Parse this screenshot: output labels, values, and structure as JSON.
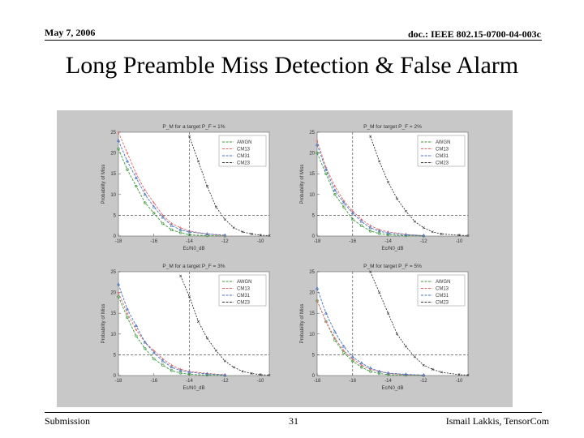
{
  "header": {
    "date": "May 7, 2006",
    "doc": "doc.: IEEE 802.15-0700-04-003c"
  },
  "slide": {
    "title": "Long Preamble Miss Detection & False Alarm"
  },
  "footer": {
    "left": "Submission",
    "page": "31",
    "right": "Ismail Lakkis, TensorCom"
  },
  "chart_data": [
    {
      "type": "line",
      "title": "P_M for a target P_F = 1%",
      "xlabel": "Ec/N0_dB",
      "ylabel": "Probability of Miss",
      "xlim": [
        -18,
        -9.5
      ],
      "ylim": [
        0,
        25
      ],
      "xticks": [
        -18,
        -16,
        -14,
        -12,
        -10
      ],
      "yticks": [
        0,
        5,
        10,
        15,
        20,
        25
      ],
      "reference_lines": {
        "y": 5,
        "x": -14
      },
      "legend_position": "top-right",
      "series": [
        {
          "name": "AWGN",
          "color": "#3a9a3a",
          "x": [
            -18,
            -17.5,
            -17,
            -16.5,
            -16,
            -15.5,
            -15,
            -14.5,
            -14,
            -13,
            -12
          ],
          "y": [
            21,
            16,
            12,
            8,
            5.5,
            3,
            1.5,
            0.8,
            0.3,
            0.1,
            0
          ]
        },
        {
          "name": "CM13",
          "color": "#e06666",
          "x": [
            -18,
            -17.5,
            -17,
            -16.5,
            -16,
            -15.5,
            -15,
            -14.5,
            -14,
            -13,
            -12
          ],
          "y": [
            25,
            20,
            15,
            11,
            8,
            5,
            3,
            2,
            1.2,
            0.5,
            0
          ]
        },
        {
          "name": "CM31",
          "color": "#4472c4",
          "x": [
            -18,
            -17.5,
            -17,
            -16.5,
            -16,
            -15.5,
            -15,
            -14.5,
            -14,
            -13,
            -12
          ],
          "y": [
            23,
            18,
            14,
            10,
            7,
            4.5,
            2.5,
            1.5,
            1,
            0.5,
            0.2
          ]
        },
        {
          "name": "CM23",
          "color": "#333333",
          "x": [
            -14,
            -13.5,
            -13,
            -12.5,
            -12,
            -11.5,
            -11,
            -10.5,
            -10,
            -9.5
          ],
          "y": [
            24,
            18,
            12,
            7,
            4,
            2,
            1,
            0.5,
            0.2,
            0.1
          ]
        }
      ]
    },
    {
      "type": "line",
      "title": "P_M for target P_F = 2%",
      "xlabel": "Ec/N0_dB",
      "ylabel": "Probability of Miss",
      "xlim": [
        -18,
        -9.5
      ],
      "ylim": [
        0,
        25
      ],
      "xticks": [
        -18,
        -16,
        -14,
        -12,
        -10
      ],
      "yticks": [
        0,
        5,
        10,
        15,
        20,
        25
      ],
      "reference_lines": {
        "y": 5,
        "x": -16
      },
      "legend_position": "top-right",
      "series": [
        {
          "name": "AWGN",
          "color": "#3a9a3a",
          "x": [
            -18,
            -17.5,
            -17,
            -16.5,
            -16,
            -15.5,
            -15,
            -14.5,
            -14,
            -13,
            -12
          ],
          "y": [
            20,
            15,
            10,
            7,
            4,
            2.5,
            1.2,
            0.6,
            0.3,
            0.1,
            0
          ]
        },
        {
          "name": "CM13",
          "color": "#e06666",
          "x": [
            -18,
            -17.5,
            -17,
            -16.5,
            -16,
            -15.5,
            -15,
            -14.5,
            -14,
            -13,
            -12
          ],
          "y": [
            23,
            16.5,
            12,
            8.5,
            6,
            4,
            2.5,
            1.5,
            1,
            0.4,
            0.1
          ]
        },
        {
          "name": "CM31",
          "color": "#4472c4",
          "x": [
            -18,
            -17.5,
            -17,
            -16.5,
            -16,
            -15.5,
            -15,
            -14.5,
            -14,
            -13,
            -12
          ],
          "y": [
            22,
            16,
            11,
            8,
            5.5,
            3.5,
            2,
            1.2,
            0.7,
            0.3,
            0.1
          ]
        },
        {
          "name": "CM23",
          "color": "#333333",
          "x": [
            -15,
            -14.5,
            -14,
            -13.5,
            -13,
            -12.5,
            -12,
            -11.5,
            -11,
            -10,
            -9.5
          ],
          "y": [
            24,
            18,
            13,
            9,
            6,
            3.5,
            2,
            1,
            0.5,
            0.2,
            0.1
          ]
        }
      ]
    },
    {
      "type": "line",
      "title": "P_M for a target P_F = 3%",
      "xlabel": "Ec/N0_dB",
      "ylabel": "Probability of Miss",
      "xlim": [
        -18,
        -9.5
      ],
      "ylim": [
        0,
        25
      ],
      "xticks": [
        -18,
        -16,
        -14,
        -12,
        -10
      ],
      "yticks": [
        0,
        5,
        10,
        15,
        20,
        25
      ],
      "reference_lines": {
        "y": 5,
        "x": -14
      },
      "legend_position": "top-right",
      "series": [
        {
          "name": "AWGN",
          "color": "#3a9a3a",
          "x": [
            -18,
            -17.5,
            -17,
            -16.5,
            -16,
            -15.5,
            -15,
            -14.5,
            -14,
            -13,
            -12
          ],
          "y": [
            19,
            14,
            9.5,
            6.5,
            4,
            2.5,
            1.2,
            0.6,
            0.3,
            0.1,
            0
          ]
        },
        {
          "name": "CM13",
          "color": "#e06666",
          "x": [
            -18,
            -17.5,
            -17,
            -16.5,
            -16,
            -15.5,
            -15,
            -14.5,
            -14,
            -13,
            -12
          ],
          "y": [
            20,
            15,
            11,
            8,
            6,
            4,
            2.5,
            1.5,
            1,
            0.5,
            0.2
          ]
        },
        {
          "name": "CM31",
          "color": "#4472c4",
          "x": [
            -18,
            -17.5,
            -17,
            -16.5,
            -16,
            -15.5,
            -15,
            -14.5,
            -14,
            -13,
            -12
          ],
          "y": [
            22,
            16,
            12,
            8,
            5.5,
            3.5,
            2,
            1.2,
            0.8,
            0.4,
            0.1
          ]
        },
        {
          "name": "CM23",
          "color": "#333333",
          "x": [
            -14.5,
            -14,
            -13.5,
            -13,
            -12.5,
            -12,
            -11.5,
            -11,
            -10.5,
            -10,
            -9.5
          ],
          "y": [
            24,
            19,
            13,
            9,
            6,
            3.5,
            2,
            1,
            0.5,
            0.2,
            0.1
          ]
        }
      ]
    },
    {
      "type": "line",
      "title": "P_M for target P_F = 5%",
      "xlabel": "Ec/N0_dB",
      "ylabel": "Probability of Miss",
      "xlim": [
        -18,
        -9.5
      ],
      "ylim": [
        0,
        25
      ],
      "xticks": [
        -18,
        -16,
        -14,
        -12,
        -10
      ],
      "yticks": [
        0,
        5,
        10,
        15,
        20,
        25
      ],
      "reference_lines": {
        "y": 5,
        "x": -16
      },
      "legend_position": "top-right",
      "series": [
        {
          "name": "AWGN",
          "color": "#3a9a3a",
          "x": [
            -18,
            -17.5,
            -17,
            -16.5,
            -16,
            -15.5,
            -15,
            -14.5,
            -14,
            -13,
            -12
          ],
          "y": [
            18,
            13,
            8.5,
            5.5,
            3.5,
            2,
            1,
            0.5,
            0.2,
            0.1,
            0
          ]
        },
        {
          "name": "CM13",
          "color": "#e06666",
          "x": [
            -18,
            -17.5,
            -17,
            -16.5,
            -16,
            -15.5,
            -15,
            -14.5,
            -14,
            -13,
            -12
          ],
          "y": [
            18,
            13,
            9,
            6,
            4,
            2.5,
            1.5,
            1,
            0.5,
            0.2,
            0.1
          ]
        },
        {
          "name": "CM31",
          "color": "#4472c4",
          "x": [
            -18,
            -17.5,
            -17,
            -16.5,
            -16,
            -15.5,
            -15,
            -14.5,
            -14,
            -13,
            -12
          ],
          "y": [
            21,
            15,
            10.5,
            7,
            4.5,
            3,
            1.8,
            1,
            0.6,
            0.3,
            0.1
          ]
        },
        {
          "name": "CM23",
          "color": "#333333",
          "x": [
            -15,
            -14.5,
            -14,
            -13.5,
            -13,
            -12.5,
            -12,
            -11.5,
            -11,
            -10,
            -9.5
          ],
          "y": [
            25,
            20,
            15,
            10,
            7,
            4.5,
            2.5,
            1.5,
            0.8,
            0.2,
            0.1
          ]
        }
      ]
    }
  ]
}
